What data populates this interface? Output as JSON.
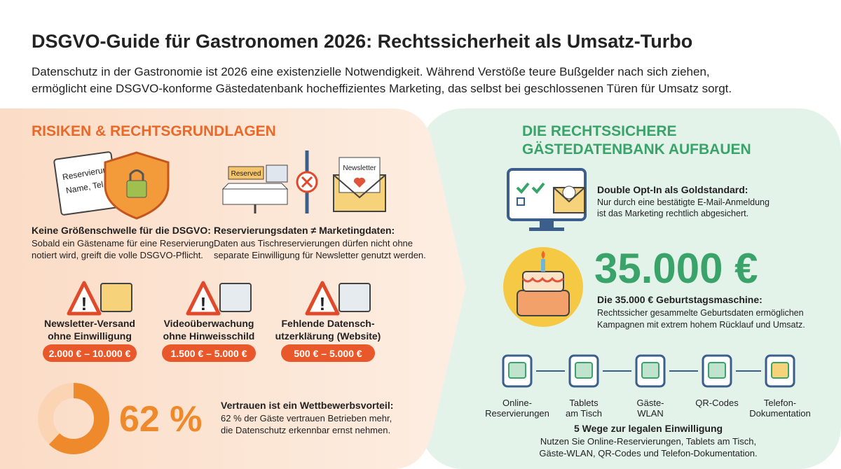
{
  "header": {
    "title": "DSGVO-Guide für Gastronomen 2026: Rechtssicherheit als Umsatz-Turbo",
    "subtitle": [
      "Datenschutz in der Gastronomie ist 2026 eine existenzielle Notwendigkeit. Während Verstöße teure Bußgelder nach sich ziehen,",
      "ermöglicht eine DSGVO-konforme Gästedatenbank hocheffizientes Marketing, das selbst bei geschlossenen Türen für Umsatz sorgt."
    ]
  },
  "left": {
    "heading": "RISIKEN & RECHTSGRUNDLAGEN",
    "icons": {
      "card": [
        "Reservierung:",
        "Name, Tel."
      ],
      "reserved": "Reserved",
      "newsletter": "Newsletter"
    },
    "items": [
      {
        "title": "Keine Größenschwelle für die DSGVO:",
        "text": [
          "Sobald ein Gästename für eine Reservierung",
          "notiert wird, greift die volle DSGVO-Pflicht."
        ]
      },
      {
        "title": "Reservierungsdaten ≠ Marketingdaten:",
        "text": [
          "Daten aus Tischreservierungen dürfen nicht ohne",
          "separate Einwilligung für Newsletter genutzt werden."
        ]
      }
    ],
    "fines": [
      {
        "title": [
          "Newsletter-Versand",
          "ohne Einwilligung"
        ],
        "range": "2.000 € – 10.000 €"
      },
      {
        "title": [
          "Videoüberwachung",
          "ohne Hinweisschild"
        ],
        "range": "1.500 € – 5.000 €"
      },
      {
        "title": [
          "Fehlende Datensch-",
          "utzerklärung (Website)"
        ],
        "range": "500 € – 5.000 €"
      }
    ],
    "stat": {
      "value": 62,
      "label": "62 %",
      "title": "Vertrauen ist ein Wettbewerbsvorteil:",
      "text": [
        "62 % der Gäste vertrauen Betrieben mehr,",
        "die Datenschutz erkennbar ernst nehmen."
      ]
    }
  },
  "right": {
    "heading": [
      "DIE RECHTSSICHERE",
      "GÄSTEDATENBANK AUFBAUEN"
    ],
    "optin": {
      "title": "Double Opt-In als Goldstandard:",
      "text": [
        "Nur durch eine bestätigte E-Mail-Anmeldung",
        "ist das Marketing rechtlich abgesichert."
      ]
    },
    "amount": "35.000 €",
    "birthday": {
      "title": "Die 35.000 € Geburtstagsmaschine:",
      "text": [
        "Rechtssicher gesammelte Geburtsdaten ermöglichen",
        "Kampagnen mit extrem hohem Rücklauf und Umsatz."
      ]
    },
    "channels": [
      [
        "Online-",
        "Reservierungen"
      ],
      [
        "Tablets",
        "am Tisch"
      ],
      [
        "Gäste-",
        "WLAN"
      ],
      [
        "QR-Codes"
      ],
      [
        "Telefon-",
        "Dokumentation"
      ]
    ],
    "ways": {
      "title": "5 Wege zur legalen Einwilligung",
      "text": [
        "Nutzen Sie Online-Reservierungen, Tablets am Tisch,",
        "Gäste-WLAN, QR-Codes und Telefon-Dokumentation."
      ]
    }
  }
}
